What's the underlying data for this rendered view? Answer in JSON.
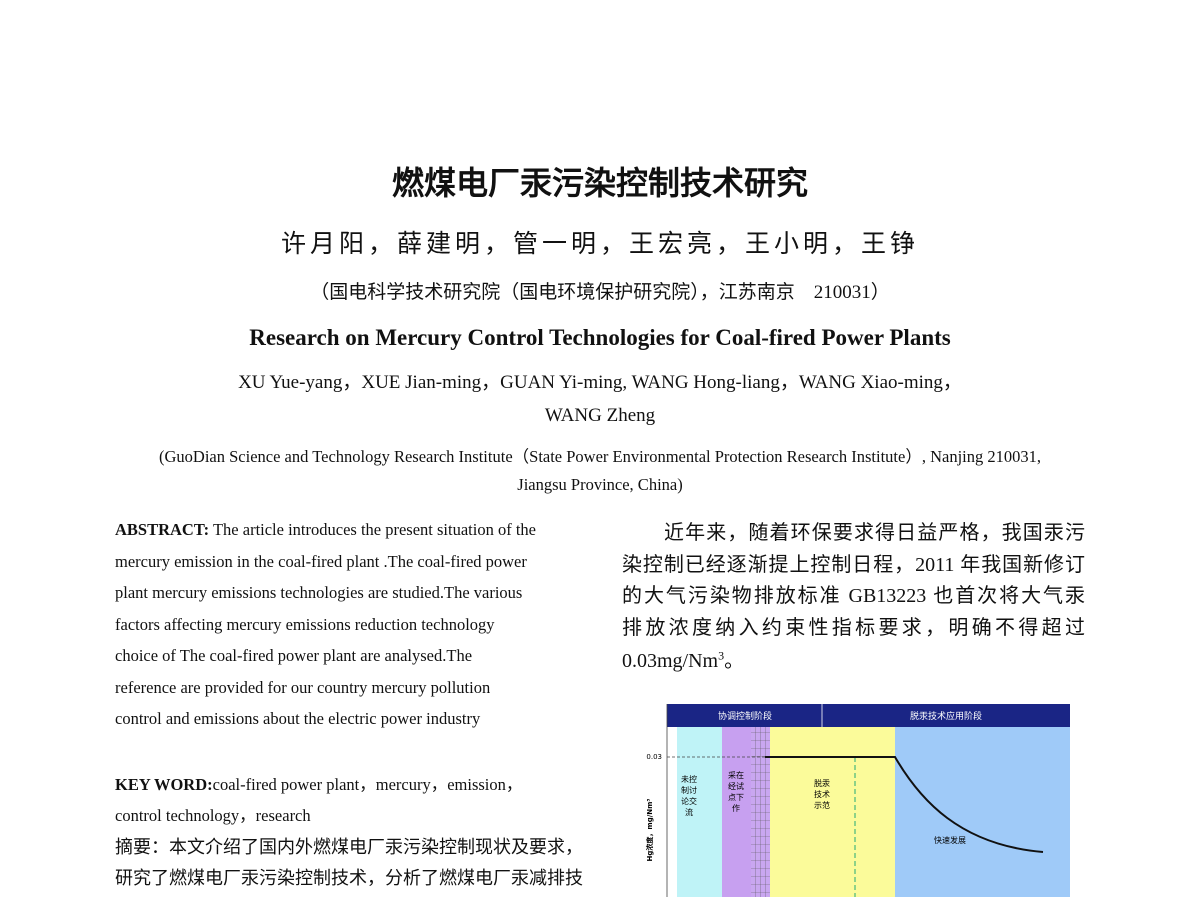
{
  "header": {
    "title": "燃煤电厂汞污染控制技术研究",
    "authors": "许月阳，薛建明，管一明，王宏亮，王小明，王铮",
    "affiliation": "（国电科学技术研究院（国电环境保护研究院），江苏南京　210031）",
    "english_title": "Research on Mercury Control Technologies for Coal-fired Power Plants",
    "english_authors": [
      "XU Yue-yang，XUE Jian-ming，GUAN Yi-ming, WANG Hong-liang，WANG Xiao-ming，",
      "WANG Zheng"
    ],
    "english_affiliation": [
      "(GuoDian Science and Technology Research Institute（State Power Environmental Protection Research Institute）, Nanjing 210031,",
      "Jiangsu Province, China)"
    ]
  },
  "abstract": {
    "label": "ABSTRACT:",
    "lines": [
      " The article introduces the present situation of the",
      "mercury emission in the coal-fired plant .The coal-fired power",
      "plant mercury emissions technologies are studied.The various",
      "factors affecting mercury emissions reduction technology",
      "choice of The coal-fired power plant are analysed.The",
      "reference are provided for our country mercury pollution",
      "control and emissions about the electric power industry"
    ]
  },
  "keywords": {
    "label": "KEY WORD:",
    "lines": [
      "coal-fired power plant，mercury，emission，",
      "control technology，research"
    ]
  },
  "chinese_abstract": {
    "lines": [
      "摘要：本文介绍了国内外燃煤电厂汞污染控制现状及要求，",
      "研究了燃煤电厂汞污染控制技术，分析了燃煤电厂汞减排技"
    ]
  },
  "body": {
    "lines": [
      "近年来，随着环保要求得日益严格，我国汞污",
      "染控制已经逐渐提上控制日程，2011 年我国新修订",
      "的大气污染物排放标准 GB13223 也首次将大气汞",
      "排放浓度纳入约束性指标要求，明确不得超过"
    ],
    "last_line": {
      "text": "0.03mg/Nm",
      "sup": "3",
      "end": "。"
    }
  },
  "figure": {
    "header": [
      "协调控制阶段",
      "脱汞技术应用阶段"
    ],
    "y_label": "Hg浓度，mg/Nm³",
    "y_tick": "0.03",
    "regions": [
      [
        "未控",
        "制讨",
        "论交",
        "流"
      ],
      [
        "采在",
        "经试",
        "点下",
        "作"
      ],
      [
        "脱汞",
        "技术",
        "示范"
      ],
      [
        "快速发展"
      ]
    ]
  }
}
